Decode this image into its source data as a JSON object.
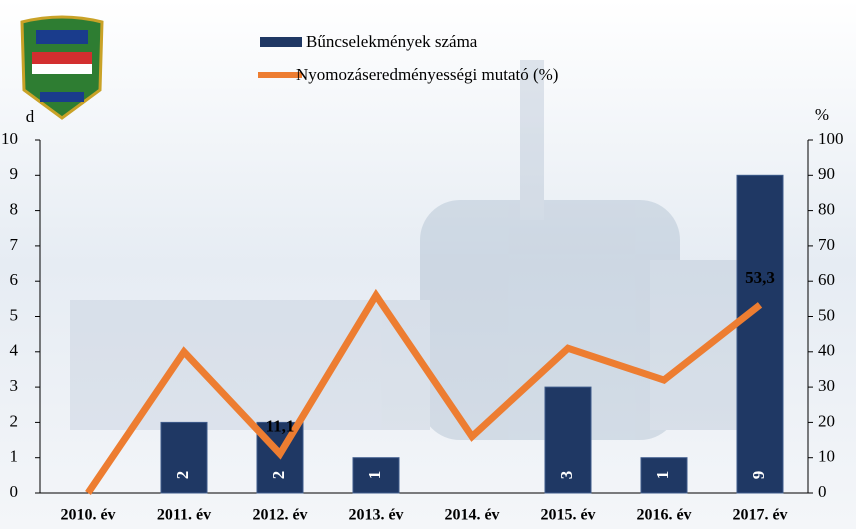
{
  "chart_data": {
    "type": "bar-line",
    "categories": [
      "2010. év",
      "2011. év",
      "2012. év",
      "2013. év",
      "2014. év",
      "2015. év",
      "2016. év",
      "2017. év"
    ],
    "series": [
      {
        "name": "Bűncselekmények száma",
        "type": "bar",
        "color": "#1f3864",
        "values": [
          0,
          2,
          2,
          1,
          0,
          3,
          1,
          9
        ]
      },
      {
        "name": "Nyomozáseredményességi mutató (%)",
        "type": "line",
        "axis": "y2",
        "color": "#ed7d31",
        "values": [
          0,
          40,
          11.1,
          56,
          16,
          41,
          32,
          53.3
        ],
        "value_labels": [
          null,
          null,
          "11,1",
          null,
          null,
          null,
          null,
          "53,3"
        ]
      }
    ],
    "ylabel": "d",
    "y2label": "%",
    "ylim": [
      0,
      10
    ],
    "yticks": [
      0,
      1,
      2,
      3,
      4,
      5,
      6,
      7,
      8,
      9,
      10
    ],
    "y2lim": [
      0,
      100
    ],
    "y2ticks": [
      0,
      10,
      20,
      30,
      40,
      50,
      60,
      70,
      80,
      90,
      100
    ]
  }
}
